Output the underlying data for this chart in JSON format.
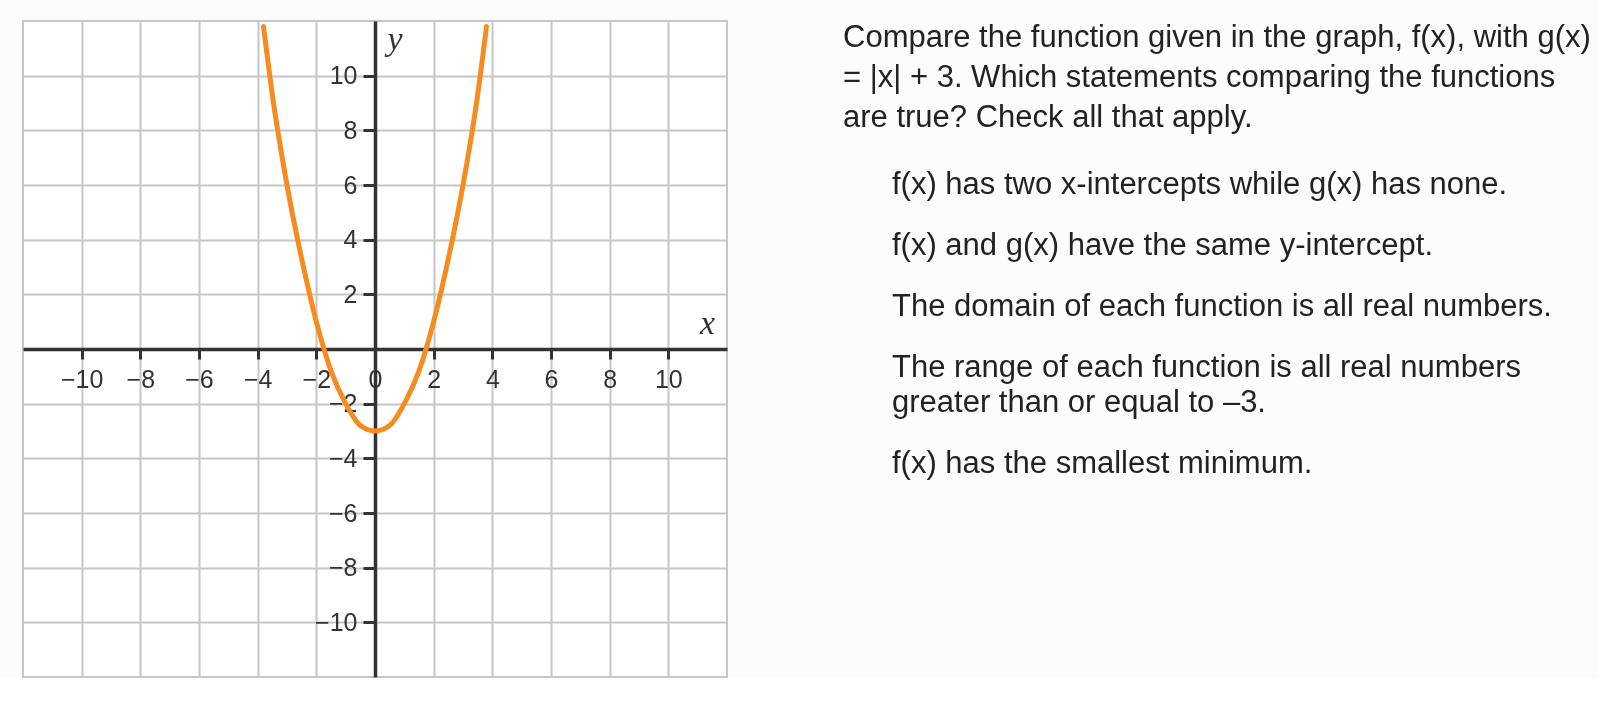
{
  "chart_data": {
    "type": "line",
    "xlabel": "x",
    "ylabel": "y",
    "x": [
      -3.8,
      -3.5,
      -3,
      -2.5,
      -2,
      -1.5,
      -1,
      -0.5,
      0,
      0.5,
      1,
      1.5,
      2,
      2.5,
      3,
      3.5,
      3.8
    ],
    "series": [
      {
        "color": "#f68b1f",
        "values": [
          11.8,
          9.3,
          6,
          3.3,
          1,
          -0.8,
          -2,
          -2.8,
          -3,
          -2.8,
          -2,
          -0.8,
          1,
          3.3,
          6,
          9.3,
          11.8
        ]
      }
    ],
    "xlim": [
      -12,
      12
    ],
    "ylim": [
      -12,
      12
    ],
    "xticks": [
      -10,
      -8,
      -6,
      -4,
      -2,
      0,
      2,
      4,
      6,
      8,
      10
    ],
    "yticks": [
      -10,
      -8,
      -6,
      -4,
      -2,
      2,
      4,
      6,
      8,
      10
    ],
    "grid": true,
    "legend": false,
    "line_style": "solid",
    "annotations": [
      "Compare the function given in the graph, f(x), with g(x) = |x| + 3. Which statements comparing the functions are true? Check all that apply.",
      "f(x) has two x-intercepts while g(x) has none.",
      "f(x) and g(x) have the same y-intercept.",
      "The domain of each function is all real numbers.",
      "The range of each function is all real numbers greater than or equal to –3.",
      "f(x) has the smallest minimum."
    ]
  }
}
